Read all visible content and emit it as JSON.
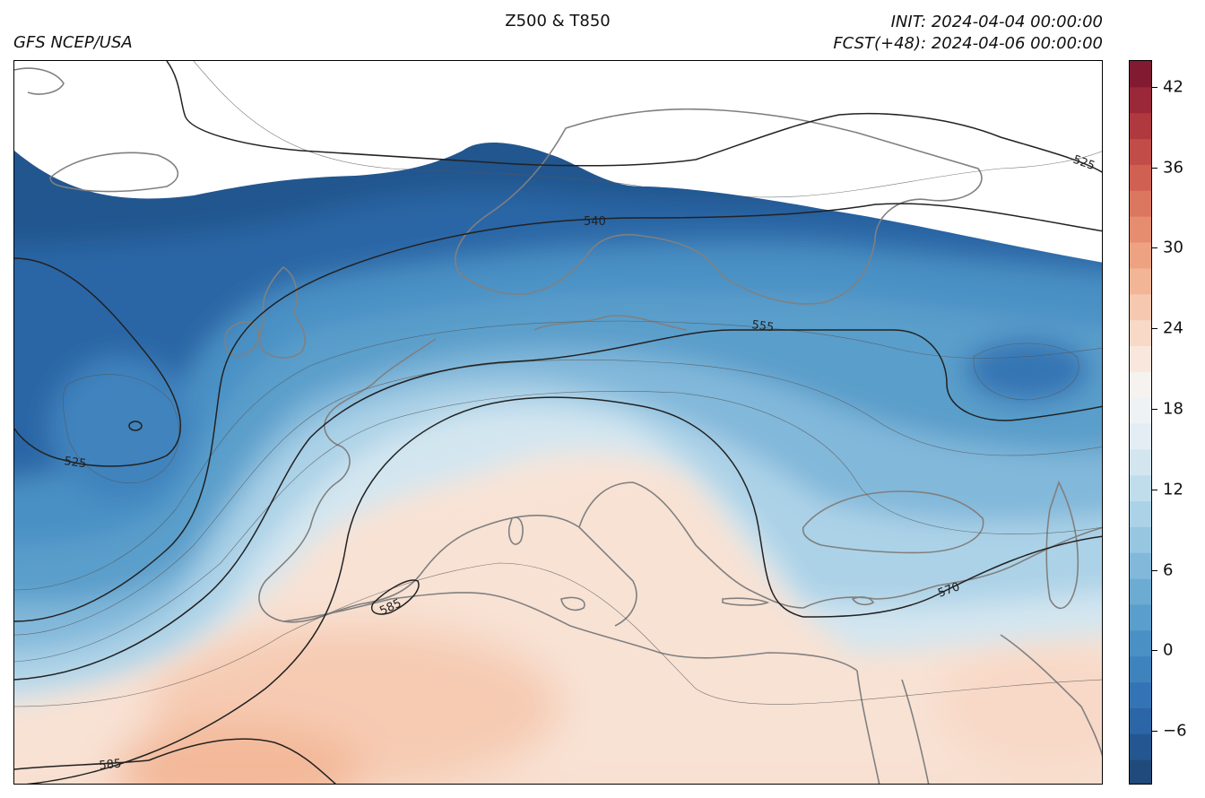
{
  "header": {
    "title": "Z500 & T850",
    "source": "GFS NCEP/USA",
    "init": "INIT: 2024-04-04 00:00:00",
    "forecast": "FCST(+48): 2024-04-06 00:00:00"
  },
  "colorbar": {
    "ticks": [
      "−6",
      "0",
      "6",
      "12",
      "18",
      "24",
      "30",
      "36",
      "42"
    ],
    "tick_values": [
      -6,
      0,
      6,
      12,
      18,
      24,
      30,
      36,
      42
    ],
    "range": [
      -10,
      44
    ],
    "colors": [
      "#1f4a7a",
      "#24578f",
      "#2c66a6",
      "#3574b4",
      "#3f83bd",
      "#4a90c4",
      "#5a9ecb",
      "#6dabd2",
      "#82b8da",
      "#97c6e1",
      "#acd2e7",
      "#c0ddec",
      "#d3e6f0",
      "#e3edf3",
      "#eef2f4",
      "#f6f2ef",
      "#f9e7dd",
      "#f8d8c6",
      "#f6c8af",
      "#f2b697",
      "#eda281",
      "#e58d6e",
      "#dc775f",
      "#d06152",
      "#c24c47",
      "#b0383f",
      "#9b2839",
      "#821a32"
    ]
  },
  "contours": {
    "labels": [
      "525",
      "540",
      "555",
      "570",
      "585",
      "525",
      "585"
    ]
  },
  "colors": {
    "land_outline": "#808080",
    "contour_main": "#222222",
    "contour_minor": "#555555"
  }
}
